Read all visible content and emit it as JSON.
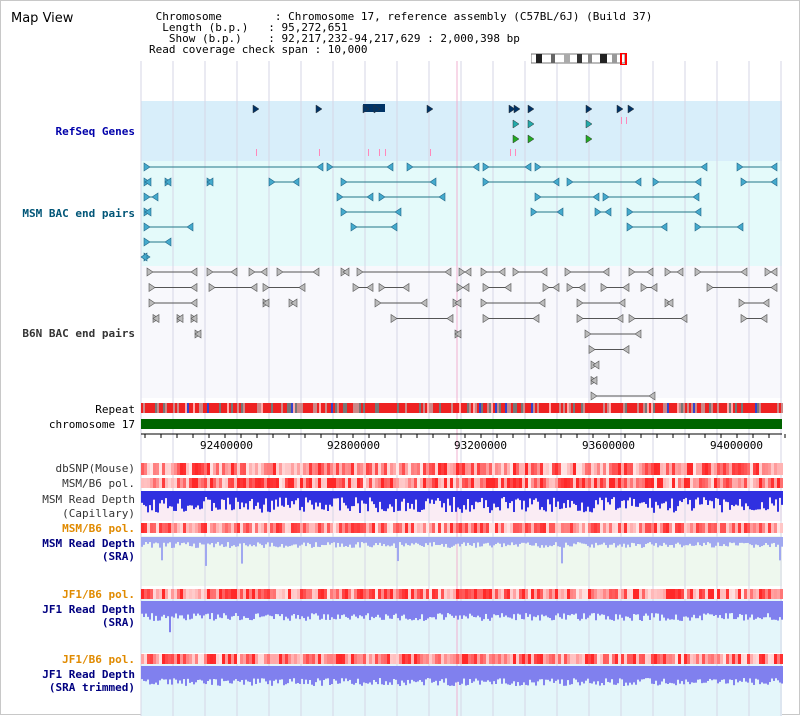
{
  "page_title": "Map View",
  "info": {
    "chromosome": " Chromosome        : Chromosome 17, reference assembly (C57BL/6J) (Build 37)",
    "length": "  Length (b.p.)   : 95,272,651",
    "show": "   Show (b.p.)    : 92,217,232-94,217,629 : 2,000,398 bp",
    "coverage": "Read coverage check span : 10,000"
  },
  "tracks": {
    "refseq": "RefSeq Genes",
    "msm_bac": "MSM BAC end pairs",
    "b6n_bac": "B6N BAC end pairs",
    "repeat": "Repeat",
    "chromosome": "chromosome 17",
    "dbsnp": "dbSNP(Mouse)",
    "msm_b6_pol_1": "MSM/B6 pol.",
    "msm_read_depth_cap_1": "MSM Read Depth",
    "msm_read_depth_cap_2": "(Capillary)",
    "msm_b6_pol_2": "MSM/B6 pol.",
    "msm_read_depth_sra_1": "MSM Read Depth",
    "msm_read_depth_sra_2": "(SRA)",
    "jf1_b6_pol_1": "JF1/B6 pol.",
    "jf1_read_depth_sra_1": "JF1 Read Depth",
    "jf1_read_depth_sra_2": "(SRA)",
    "jf1_b6_pol_2": "JF1/B6 pol.",
    "jf1_read_depth_trim_1": "JF1 Read Depth",
    "jf1_read_depth_trim_2": "(SRA trimmed)"
  },
  "axis": {
    "ticks": [
      "92400000",
      "92800000",
      "93200000",
      "93600000",
      "94000000"
    ]
  },
  "colors": {
    "refseq_label": "#0000aa",
    "msm_label": "#005577",
    "b6n_label": "#333333",
    "orange_label": "#e08a00",
    "blue_label": "#000080",
    "chromosome_bar": "#006400",
    "depth_blue": "#3030e0",
    "depth_light": "#8080ee"
  }
}
